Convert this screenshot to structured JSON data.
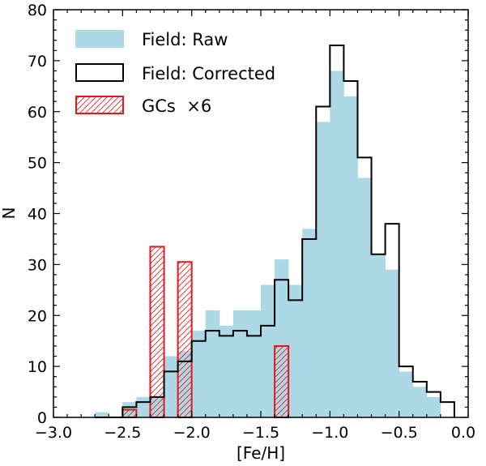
{
  "chart_data": {
    "type": "bar",
    "xlabel": "[Fe/H]",
    "ylabel": "N",
    "xlim": [
      -3.0,
      0.0
    ],
    "ylim": [
      0,
      80
    ],
    "bin_width": 0.1,
    "x_ticks": [
      "−3.0",
      "−2.5",
      "−2.0",
      "−1.5",
      "−1.0",
      "−0.5",
      "0.0"
    ],
    "y_ticks": [
      "0",
      "10",
      "20",
      "30",
      "40",
      "50",
      "60",
      "70",
      "80"
    ],
    "colors": {
      "raw_fill": "#add8e6",
      "corrected_line": "#000000",
      "gc_line": "#e31a1c"
    },
    "legend": {
      "position": "top-left",
      "entries": [
        "Field: Raw",
        "Field: Corrected",
        "GCs  ×6"
      ]
    },
    "series": [
      {
        "name": "Field: Raw",
        "style": "filled",
        "bin_left_edges": [
          -2.7,
          -2.6,
          -2.5,
          -2.4,
          -2.3,
          -2.2,
          -2.1,
          -2.0,
          -1.9,
          -1.8,
          -1.7,
          -1.6,
          -1.5,
          -1.4,
          -1.3,
          -1.2,
          -1.1,
          -1.0,
          -0.9,
          -0.8,
          -0.7,
          -0.6,
          -0.5,
          -0.4,
          -0.3,
          -0.2
        ],
        "values": [
          1,
          0,
          3,
          4,
          4,
          12,
          13,
          17,
          21,
          18,
          21,
          21,
          26,
          31,
          26,
          37,
          58,
          68,
          63,
          47,
          32,
          29,
          9,
          6,
          4,
          0
        ]
      },
      {
        "name": "Field: Corrected",
        "style": "step",
        "bin_left_edges": [
          -2.7,
          -2.6,
          -2.5,
          -2.4,
          -2.3,
          -2.2,
          -2.1,
          -2.0,
          -1.9,
          -1.8,
          -1.7,
          -1.6,
          -1.5,
          -1.4,
          -1.3,
          -1.2,
          -1.1,
          -1.0,
          -0.9,
          -0.8,
          -0.7,
          -0.6,
          -0.5,
          -0.4,
          -0.3,
          -0.2
        ],
        "values": [
          0,
          0,
          2,
          3,
          4,
          9,
          11,
          15,
          17,
          16,
          17,
          16,
          18,
          27,
          23,
          35,
          61,
          73,
          66,
          51,
          32,
          38,
          10,
          7,
          5,
          3
        ]
      },
      {
        "name": "GCs  ×6",
        "style": "hatched",
        "bins": [
          {
            "left": -2.5,
            "value": 1.5
          },
          {
            "left": -2.3,
            "value": 33.5
          },
          {
            "left": -2.1,
            "value": 30.5
          },
          {
            "left": -1.4,
            "value": 14
          }
        ]
      }
    ]
  }
}
